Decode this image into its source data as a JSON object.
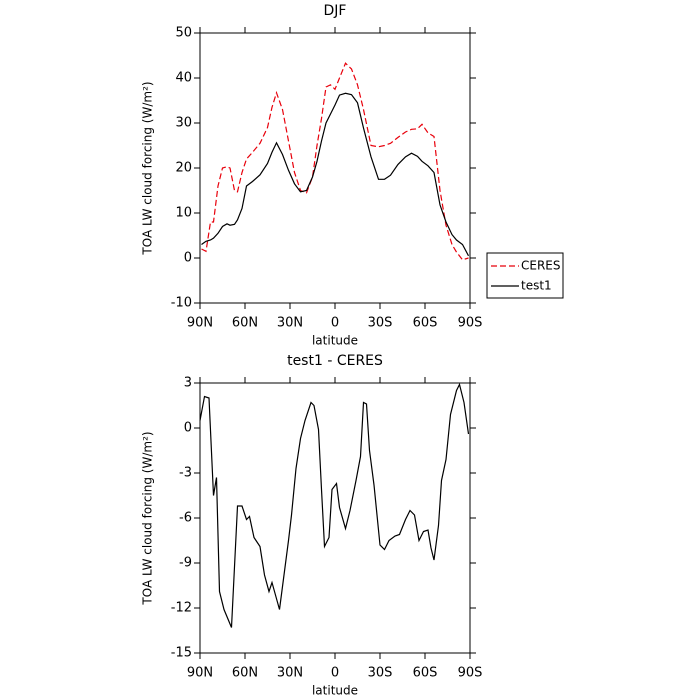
{
  "chart_data": [
    {
      "type": "line",
      "title": "DJF",
      "xlabel": "latitude",
      "ylabel": "TOA LW cloud forcing (W/m²)",
      "x": [
        89,
        86,
        83,
        81,
        78,
        75,
        72,
        70,
        67,
        65,
        62,
        59,
        55,
        50,
        45,
        42,
        39,
        35,
        31,
        27,
        23,
        19,
        15,
        12,
        9,
        6,
        3,
        0,
        -3,
        -7,
        -11,
        -15,
        -19,
        -24,
        -29,
        -33,
        -37,
        -42,
        -47,
        -51,
        -55,
        -58,
        -62,
        -66,
        -70,
        -74,
        -78,
        -81,
        -85,
        -89
      ],
      "series": [
        {
          "name": "CERES",
          "color": "#e8000b",
          "dash": true,
          "values": [
            2,
            1.5,
            8,
            8,
            16,
            20,
            20.3,
            20,
            15,
            14.7,
            19,
            22,
            23.5,
            25.5,
            29,
            33.5,
            36.7,
            33,
            26,
            19,
            15,
            14.5,
            18,
            25,
            31,
            38,
            38.5,
            37.5,
            40,
            43.3,
            42,
            38.5,
            33,
            25,
            24.7,
            25,
            25.5,
            26.8,
            28,
            28.6,
            28.7,
            29.7,
            27.8,
            27,
            15,
            7.3,
            3,
            1.3,
            -0.4,
            0
          ]
        },
        {
          "name": "test1",
          "color": "#000000",
          "dash": false,
          "values": [
            3,
            3.7,
            4,
            4.4,
            5.5,
            7,
            7.6,
            7.3,
            7.5,
            8.5,
            11,
            16,
            17,
            18.5,
            21,
            23.5,
            25.6,
            23,
            19.5,
            16.5,
            14.7,
            15,
            18,
            21.5,
            26,
            30,
            32,
            34,
            36.2,
            36.6,
            36.3,
            34.5,
            28.9,
            22.5,
            17.5,
            17.5,
            18.4,
            20.8,
            22.5,
            23.3,
            22.6,
            21.5,
            20.5,
            19,
            11.8,
            8,
            5.2,
            4,
            3,
            0.5
          ]
        }
      ],
      "xlim": [
        90,
        -90
      ],
      "xticks": [
        {
          "value": 90,
          "label": "90N"
        },
        {
          "value": 60,
          "label": "60N"
        },
        {
          "value": 30,
          "label": "30N"
        },
        0,
        {
          "value": -30,
          "label": "30S"
        },
        {
          "value": -60,
          "label": "60S"
        },
        {
          "value": -90,
          "label": "90S"
        }
      ],
      "ylim": [
        -10,
        50
      ],
      "yticks": [
        -10,
        0,
        10,
        20,
        30,
        40,
        50
      ],
      "grid": false,
      "legend": "right"
    },
    {
      "type": "line",
      "title": "test1 - CERES",
      "xlabel": "latitude",
      "ylabel": "TOA LW cloud forcing (W/m²)",
      "x": [
        90,
        87,
        84,
        81,
        79,
        77,
        74,
        69,
        65,
        62,
        59,
        57,
        54,
        50,
        47,
        44,
        42,
        37,
        31,
        29,
        26,
        23,
        20,
        16,
        14,
        11,
        9,
        7,
        4,
        2,
        -1,
        -3,
        -7,
        -10,
        -14,
        -17,
        -19,
        -21,
        -23,
        -26,
        -30,
        -33,
        -36,
        -40,
        -43,
        -47,
        -50,
        -53,
        -56,
        -59,
        -62,
        -64,
        -66,
        -69,
        -71,
        -74,
        -77,
        -81,
        -83,
        -86,
        -89
      ],
      "series": [
        {
          "name": "test1 - CERES",
          "color": "#000000",
          "dash": false,
          "values": [
            0.5,
            2.1,
            2,
            -4.5,
            -3.3,
            -10.9,
            -12.1,
            -13.3,
            -5.2,
            -5.2,
            -6.1,
            -5.9,
            -7.3,
            -7.9,
            -9.8,
            -10.9,
            -10.3,
            -12.1,
            -7.5,
            -5.8,
            -2.7,
            -0.7,
            0.5,
            1.7,
            1.5,
            -0.1,
            -4.1,
            -7.9,
            -7.3,
            -4.1,
            -3.7,
            -5.3,
            -6.7,
            -5.5,
            -3.5,
            -1.9,
            1.7,
            1.6,
            -1.5,
            -3.8,
            -7.8,
            -8.1,
            -7.5,
            -7.2,
            -7.1,
            -6.1,
            -5.5,
            -5.8,
            -7.5,
            -6.9,
            -6.8,
            -8,
            -8.8,
            -6.5,
            -3.5,
            -2.1,
            0.9,
            2.5,
            2.9,
            1.7,
            -0.4
          ]
        }
      ],
      "xlim": [
        90,
        -90
      ],
      "xticks": [
        {
          "value": 90,
          "label": "90N"
        },
        {
          "value": 60,
          "label": "60N"
        },
        {
          "value": 30,
          "label": "30N"
        },
        0,
        {
          "value": -30,
          "label": "30S"
        },
        {
          "value": -60,
          "label": "60S"
        },
        {
          "value": -90,
          "label": "90S"
        }
      ],
      "ylim": [
        -15,
        3
      ],
      "yticks": [
        -15,
        -12,
        -9,
        -6,
        -3,
        0,
        3
      ],
      "grid": false
    }
  ]
}
